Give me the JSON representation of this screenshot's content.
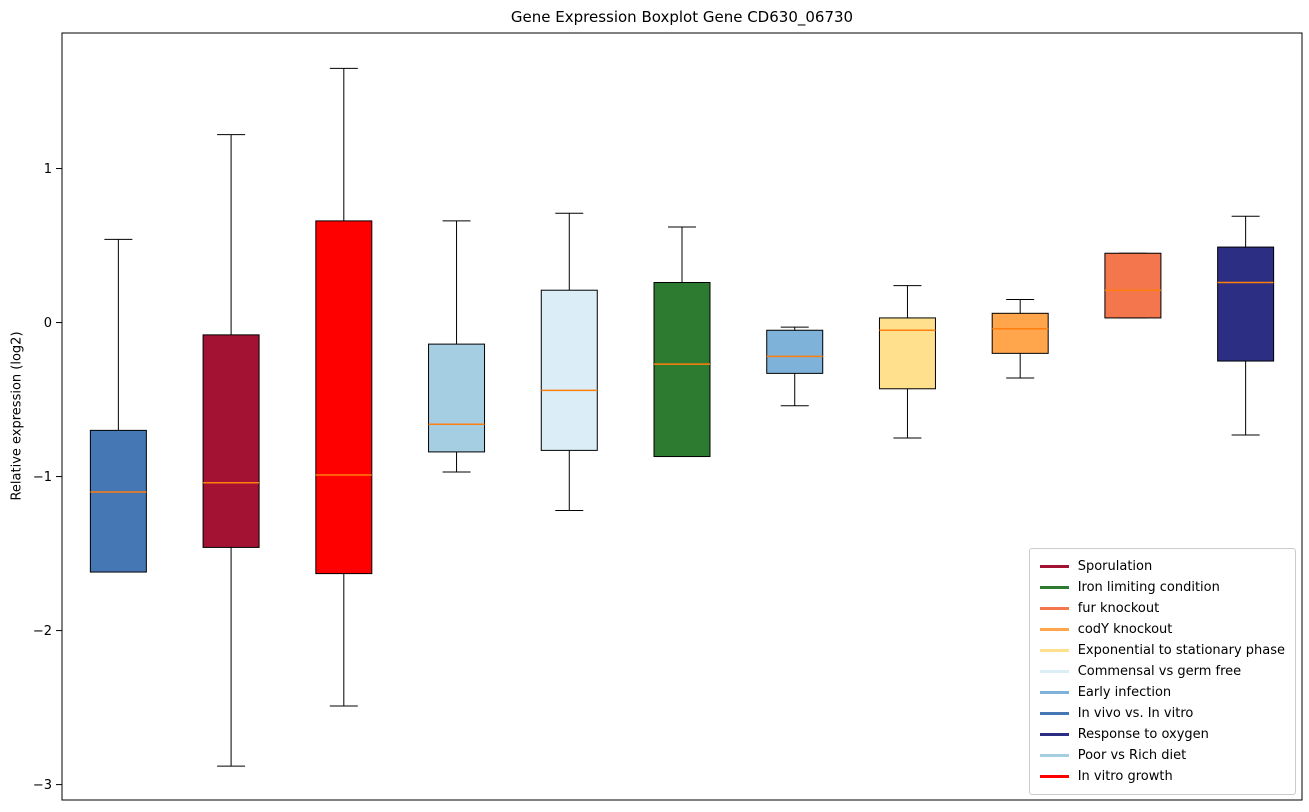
{
  "chart_data": {
    "type": "boxplot",
    "title": "Gene Expression Boxplot Gene CD630_06730",
    "xlabel": "",
    "ylabel": "Relative expression (log2)",
    "ylim": [
      -3.1,
      1.88
    ],
    "grid": false,
    "legend_position": "lower right",
    "median_color": "#ff7f0e",
    "yticks": [
      {
        "value": 1,
        "label": "1"
      },
      {
        "value": 0,
        "label": "0"
      },
      {
        "value": -1,
        "label": "−1"
      },
      {
        "value": -2,
        "label": "−2"
      },
      {
        "value": -3,
        "label": "−3"
      }
    ],
    "series": [
      {
        "name": "In vivo vs. In vitro",
        "color": "#4577b5",
        "whisker_low": -1.62,
        "q1": -1.62,
        "median": -1.1,
        "q3": -0.7,
        "whisker_high": 0.54
      },
      {
        "name": "Sporulation",
        "color": "#a31233",
        "whisker_low": -2.88,
        "q1": -1.46,
        "median": -1.04,
        "q3": -0.08,
        "whisker_high": 1.22
      },
      {
        "name": "In vitro growth",
        "color": "#ff0000",
        "whisker_low": -2.49,
        "q1": -1.63,
        "median": -0.99,
        "q3": 0.66,
        "whisker_high": 1.65
      },
      {
        "name": "Poor vs Rich diet",
        "color": "#a6cee3",
        "whisker_low": -0.97,
        "q1": -0.84,
        "median": -0.66,
        "q3": -0.14,
        "whisker_high": 0.66
      },
      {
        "name": "Commensal vs germ free",
        "color": "#dbeef8",
        "whisker_low": -1.22,
        "q1": -0.83,
        "median": -0.44,
        "q3": 0.21,
        "whisker_high": 0.71
      },
      {
        "name": "Iron limiting condition",
        "color": "#2d7a31",
        "whisker_low": -0.87,
        "q1": -0.87,
        "median": -0.27,
        "q3": 0.26,
        "whisker_high": 0.62
      },
      {
        "name": "Early infection",
        "color": "#7fb2d9",
        "whisker_low": -0.54,
        "q1": -0.33,
        "median": -0.22,
        "q3": -0.05,
        "whisker_high": -0.03
      },
      {
        "name": "Exponential to stationary phase",
        "color": "#ffe08c",
        "whisker_low": -0.75,
        "q1": -0.43,
        "median": -0.05,
        "q3": 0.03,
        "whisker_high": 0.24
      },
      {
        "name": "codY knockout",
        "color": "#ffa64d",
        "whisker_low": -0.36,
        "q1": -0.2,
        "median": -0.04,
        "q3": 0.06,
        "whisker_high": 0.15
      },
      {
        "name": "fur knockout",
        "color": "#f3764d",
        "whisker_low": 0.03,
        "q1": 0.03,
        "median": 0.21,
        "q3": 0.45,
        "whisker_high": 0.45
      },
      {
        "name": "Response to oxygen",
        "color": "#2b2e83",
        "whisker_low": -0.73,
        "q1": -0.25,
        "median": 0.26,
        "q3": 0.49,
        "whisker_high": 0.69
      }
    ],
    "legend": [
      {
        "label": "Sporulation",
        "color": "#a31233"
      },
      {
        "label": "Iron limiting condition",
        "color": "#2d7a31"
      },
      {
        "label": "fur knockout",
        "color": "#f3764d"
      },
      {
        "label": "codY knockout",
        "color": "#ffa64d"
      },
      {
        "label": "Exponential to stationary phase",
        "color": "#ffe08c"
      },
      {
        "label": "Commensal vs germ free",
        "color": "#dbeef8"
      },
      {
        "label": "Early infection",
        "color": "#7fb2d9"
      },
      {
        "label": "In vivo vs. In vitro",
        "color": "#4577b5"
      },
      {
        "label": "Response to oxygen",
        "color": "#2b2e83"
      },
      {
        "label": "Poor vs Rich diet",
        "color": "#a6cee3"
      },
      {
        "label": "In vitro growth",
        "color": "#ff0000"
      }
    ]
  }
}
